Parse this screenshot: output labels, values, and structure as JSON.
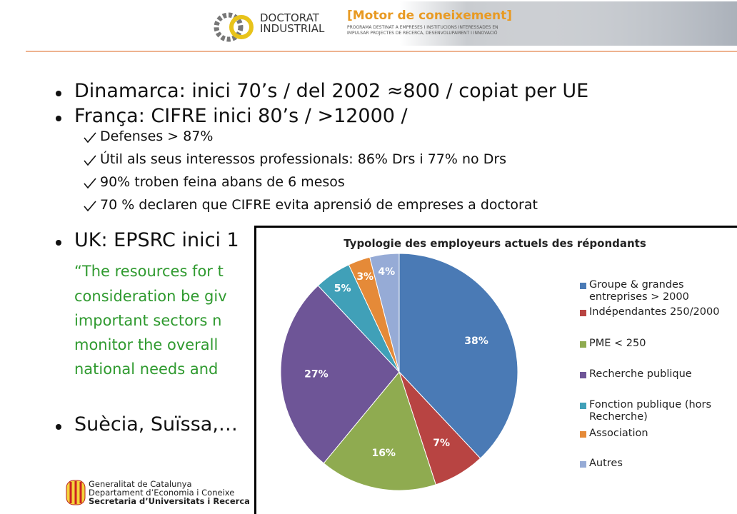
{
  "header": {
    "logo_line1": "DOCTORAT",
    "logo_line2": "INDUSTRIAL",
    "tagline": "[Motor de coneixement]",
    "tagline_sub1": "PROGRAMA DESTINAT A EMPRESES I INSTITUCIONS INTERESSADES EN",
    "tagline_sub2": "IMPULSAR PROJECTES DE RECERCA, DESENVOLUPAMENT I INNOVACIÓ"
  },
  "bullets": [
    {
      "text": "Dinamarca: inici 70’s / del 2002  ≈800 / copiat per UE"
    },
    {
      "text": "França: CIFRE inici 80’s / >12000 /",
      "checks": [
        "Defenses > 87%",
        "Útil als seus interessos professionals: 86% Drs i 77% no Drs",
        "90% troben feina abans de 6 mesos",
        "70 % declaren que CIFRE evita aprensió de empreses a doctorat"
      ]
    },
    {
      "text": "UK: EPSRC inici 1",
      "quote": [
        "“The resources for t",
        "consideration be giv",
        "important sectors n",
        "monitor the overall",
        "national needs and"
      ]
    },
    {
      "text": "Suècia, Suïssa,…"
    }
  ],
  "footer": {
    "lines": [
      "Generalitat de Catalunya",
      "Departament d’Economia i Coneixe",
      "Secretaria d’Universitats i Recerca"
    ]
  },
  "chart_data": {
    "type": "pie",
    "title": "Typologie des employeurs actuels des répondants",
    "categories": [
      "Groupe & grandes entreprises > 2000",
      "Indépendantes 250/2000",
      "PME < 250",
      "Recherche publique",
      "Fonction publique (hors Recherche)",
      "Association",
      "Autres"
    ],
    "values": [
      38,
      7,
      16,
      27,
      5,
      3,
      4
    ],
    "value_labels": [
      "38%",
      "7%",
      "16%",
      "27%",
      "5%",
      "3%",
      "4%"
    ],
    "colors": [
      "#4a7ab5",
      "#b84442",
      "#8fab50",
      "#6e5597",
      "#40a0b8",
      "#e58a38",
      "#96abd6"
    ]
  }
}
